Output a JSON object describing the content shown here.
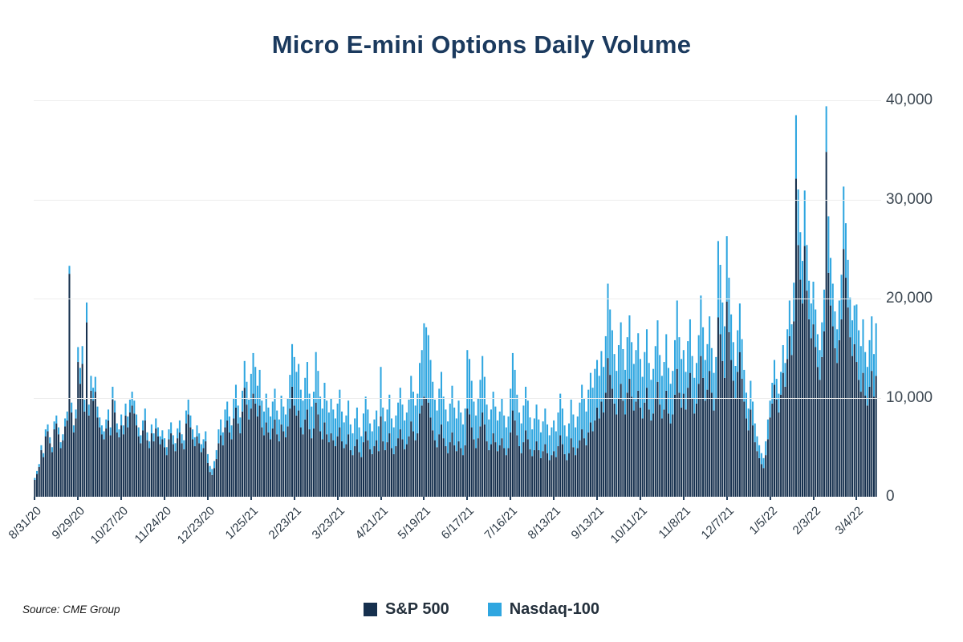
{
  "page_title": "Micro E-mini Options Daily Volume",
  "source_note": "Source: CME Group",
  "legend": {
    "items": [
      {
        "label": "S&P 500",
        "color": "#16304e"
      },
      {
        "label": "Nasdaq-100",
        "color": "#2fa6e0"
      }
    ]
  },
  "y_axis": {
    "tick_labels": [
      "0",
      "10,000",
      "20,000",
      "30,000",
      "40,000"
    ],
    "tick_values": [
      0,
      10000,
      20000,
      30000,
      40000
    ],
    "max": 40000
  },
  "x_axis": {
    "tick_labels": [
      "8/31/20",
      "9/29/20",
      "10/27/20",
      "11/24/20",
      "12/23/20",
      "1/25/21",
      "2/23/21",
      "3/23/21",
      "4/21/21",
      "5/19/21",
      "6/17/21",
      "7/16/21",
      "8/13/21",
      "9/13/21",
      "10/11/21",
      "11/8/21",
      "12/7/21",
      "1/5/22",
      "2/3/22",
      "3/4/22"
    ],
    "tick_interval_bars": 20
  },
  "chart_data": {
    "type": "bar",
    "stacked": true,
    "title": "Micro E-mini Options Daily Volume",
    "grid": "horizontal",
    "legend_position": "bottom",
    "ylim": [
      0,
      40000
    ],
    "y_ticks": [
      0,
      10000,
      20000,
      30000,
      40000
    ],
    "x_tick_labels": [
      "8/31/20",
      "9/29/20",
      "10/27/20",
      "11/24/20",
      "12/23/20",
      "1/25/21",
      "2/23/21",
      "3/23/21",
      "4/21/21",
      "5/19/21",
      "6/17/21",
      "7/16/21",
      "8/13/21",
      "9/13/21",
      "10/11/21",
      "11/8/21",
      "12/7/21",
      "1/5/22",
      "2/3/22",
      "3/4/22"
    ],
    "x_tick_every": 20,
    "series": [
      {
        "name": "S&P 500",
        "color": "#16304e",
        "values": [
          1700,
          2300,
          3000,
          4700,
          4000,
          6100,
          6600,
          5400,
          4500,
          6800,
          7400,
          6300,
          4900,
          5700,
          7100,
          7700,
          22500,
          8500,
          6500,
          7900,
          13600,
          11400,
          13400,
          8600,
          17600,
          8200,
          10700,
          9700,
          10600,
          8000,
          7000,
          6300,
          5800,
          6900,
          7700,
          6200,
          9800,
          8500,
          6500,
          6000,
          7200,
          6300,
          8200,
          7000,
          8500,
          9200,
          8400,
          7200,
          6100,
          5400,
          6700,
          7700,
          5700,
          4900,
          6400,
          5600,
          6900,
          6100,
          5300,
          5800,
          5000,
          4200,
          5800,
          6400,
          5300,
          4600,
          5900,
          6500,
          5400,
          4800,
          7400,
          8300,
          7000,
          5800,
          5100,
          6100,
          5400,
          4500,
          4900,
          5600,
          3400,
          2500,
          2200,
          2900,
          3800,
          5400,
          6200,
          5200,
          7000,
          7700,
          6500,
          5800,
          7900,
          9000,
          7400,
          6400,
          8600,
          11000,
          9300,
          7800,
          8900,
          10400,
          9400,
          8100,
          9200,
          7000,
          6200,
          7500,
          6500,
          5800,
          6900,
          7800,
          6300,
          5600,
          7300,
          6600,
          6000,
          7100,
          8900,
          11100,
          9200,
          8200,
          8700,
          7000,
          6300,
          7800,
          8800,
          6800,
          5900,
          6900,
          9500,
          8300,
          6600,
          5800,
          7500,
          6300,
          5500,
          6400,
          5700,
          5100,
          6100,
          7000,
          5600,
          4900,
          5300,
          6300,
          4700,
          4200,
          5100,
          5800,
          4500,
          4000,
          5500,
          6600,
          5700,
          4800,
          4300,
          5100,
          5700,
          4600,
          8100,
          5600,
          4700,
          5500,
          6400,
          4900,
          4300,
          5100,
          5900,
          6800,
          5800,
          4800,
          5300,
          6100,
          7600,
          6600,
          5700,
          6400,
          8400,
          9200,
          10100,
          9900,
          9500,
          8000,
          6700,
          5700,
          5000,
          6300,
          7300,
          5900,
          5100,
          4400,
          5500,
          6500,
          5200,
          4600,
          5600,
          4900,
          4200,
          5200,
          8900,
          8300,
          7000,
          5800,
          4900,
          5900,
          7100,
          8500,
          7300,
          5600,
          4700,
          5300,
          6400,
          5500,
          4600,
          5200,
          5900,
          4900,
          4200,
          4900,
          6500,
          8700,
          7700,
          6200,
          5100,
          4400,
          5500,
          6700,
          5800,
          4800,
          4100,
          4700,
          5600,
          4700,
          3900,
          4600,
          5300,
          4400,
          3700,
          4200,
          4600,
          4000,
          5100,
          6200,
          5300,
          4300,
          3700,
          4400,
          5900,
          5000,
          4200,
          4900,
          5700,
          6800,
          5900,
          5200,
          6500,
          7500,
          6600,
          7700,
          9000,
          7900,
          9600,
          8500,
          10500,
          14000,
          12300,
          10900,
          9400,
          8300,
          9900,
          11400,
          9700,
          8300,
          10500,
          11900,
          10100,
          8700,
          9600,
          10700,
          9000,
          7900,
          9500,
          11000,
          8800,
          7700,
          8400,
          9900,
          11600,
          9300,
          7900,
          8800,
          10700,
          8400,
          7400,
          8300,
          10300,
          12900,
          10500,
          9000,
          10400,
          8800,
          11000,
          12500,
          9900,
          8400,
          9400,
          11400,
          14200,
          12000,
          9700,
          10800,
          12700,
          10500,
          8700,
          9900,
          18100,
          16400,
          13700,
          12000,
          19700,
          16600,
          13800,
          11700,
          9900,
          12600,
          14600,
          11900,
          9600,
          7900,
          6700,
          8800,
          7200,
          5500,
          4600,
          3900,
          3300,
          2900,
          4200,
          5800,
          8000,
          9400,
          11300,
          9800,
          8500,
          10300,
          12500,
          11100,
          13900,
          16200,
          14300,
          17700,
          32100,
          25400,
          21900,
          19500,
          25300,
          20800,
          17900,
          16000,
          17400,
          15100,
          13100,
          11800,
          14100,
          16700,
          34800,
          22600,
          19300,
          17200,
          15000,
          13500,
          15800,
          17900,
          25000,
          22100,
          19100,
          16100,
          14200,
          15400,
          13600,
          11800,
          10600,
          12500,
          10200,
          9200,
          11100,
          12700,
          10100,
          12200
        ]
      },
      {
        "name": "Nasdaq-100",
        "color": "#2fa6e0",
        "values": [
          200,
          300,
          300,
          500,
          400,
          700,
          700,
          600,
          500,
          800,
          800,
          700,
          600,
          600,
          800,
          900,
          800,
          1000,
          700,
          900,
          1500,
          1600,
          1800,
          1200,
          2000,
          1100,
          1500,
          1300,
          1500,
          1100,
          1000,
          900,
          800,
          900,
          1100,
          800,
          1300,
          1200,
          900,
          800,
          1100,
          900,
          1200,
          1100,
          1300,
          1400,
          1300,
          1100,
          900,
          800,
          1000,
          1200,
          800,
          700,
          900,
          800,
          1000,
          900,
          800,
          900,
          900,
          800,
          1000,
          1100,
          900,
          800,
          1000,
          1200,
          900,
          900,
          1300,
          1500,
          1200,
          1000,
          900,
          1100,
          1000,
          800,
          900,
          1000,
          900,
          600,
          600,
          700,
          900,
          1400,
          1600,
          1300,
          1800,
          1900,
          1600,
          1400,
          2000,
          2300,
          1800,
          1600,
          2100,
          2700,
          2300,
          2000,
          3500,
          4100,
          3700,
          3100,
          3600,
          2700,
          2400,
          2900,
          2500,
          2300,
          2700,
          3100,
          2400,
          2200,
          2900,
          2500,
          2300,
          2800,
          3400,
          4300,
          4900,
          4400,
          4700,
          3800,
          3400,
          4200,
          4800,
          3600,
          3200,
          3700,
          5100,
          4400,
          3500,
          3100,
          4000,
          3400,
          3000,
          3500,
          3100,
          2800,
          3300,
          3800,
          3000,
          2600,
          2900,
          3400,
          2600,
          2200,
          2800,
          3200,
          2500,
          2100,
          2900,
          3500,
          3100,
          2600,
          2300,
          2700,
          3000,
          2500,
          5000,
          3400,
          2900,
          3300,
          3900,
          3000,
          2700,
          3100,
          3600,
          4200,
          3500,
          2900,
          3200,
          3700,
          4600,
          4000,
          3500,
          4000,
          5100,
          5600,
          7400,
          7200,
          6800,
          5800,
          4900,
          4100,
          3700,
          4600,
          5300,
          4200,
          3700,
          3200,
          3900,
          4700,
          3800,
          3300,
          4100,
          3600,
          3100,
          3700,
          5900,
          5600,
          4700,
          3800,
          3300,
          4000,
          4700,
          5700,
          4800,
          3700,
          3100,
          3500,
          4200,
          3600,
          3100,
          3400,
          4000,
          3300,
          2800,
          3200,
          4400,
          5800,
          5100,
          4100,
          3400,
          3000,
          3700,
          4400,
          3900,
          3200,
          2700,
          3200,
          3700,
          3100,
          2600,
          3000,
          3600,
          2900,
          2500,
          2800,
          3100,
          2600,
          3400,
          4200,
          3600,
          2900,
          2400,
          3000,
          3900,
          3300,
          2800,
          3200,
          3800,
          4500,
          4000,
          3400,
          4300,
          5000,
          4400,
          5200,
          4800,
          4300,
          5100,
          4600,
          5700,
          7500,
          6600,
          5900,
          5000,
          4400,
          5400,
          6200,
          5200,
          4500,
          5600,
          6400,
          5500,
          4700,
          5200,
          5800,
          4900,
          4200,
          5100,
          5900,
          4700,
          4100,
          4500,
          5300,
          6200,
          5000,
          4300,
          4800,
          5700,
          4600,
          4000,
          4400,
          5500,
          6900,
          5600,
          4900,
          4400,
          3800,
          4700,
          5400,
          4300,
          3600,
          4100,
          4900,
          6100,
          5100,
          4100,
          4600,
          5500,
          4500,
          3800,
          4200,
          7700,
          7000,
          5900,
          5200,
          6600,
          5500,
          4600,
          3900,
          3300,
          4200,
          4900,
          4000,
          3200,
          2600,
          2200,
          2900,
          2400,
          1900,
          1500,
          1300,
          1100,
          1000,
          1400,
          2000,
          1700,
          2100,
          2500,
          2100,
          1900,
          2300,
          2800,
          2400,
          3000,
          3600,
          3100,
          3900,
          6400,
          5600,
          4800,
          4300,
          5600,
          4600,
          3900,
          3500,
          4300,
          3800,
          3300,
          3000,
          3500,
          4200,
          4600,
          5700,
          4800,
          4300,
          3700,
          3400,
          4000,
          4500,
          6300,
          5500,
          4800,
          4000,
          3600,
          3900,
          5800,
          5000,
          4600,
          5400,
          4400,
          3900,
          4700,
          5500,
          4300,
          5300
        ]
      }
    ]
  }
}
